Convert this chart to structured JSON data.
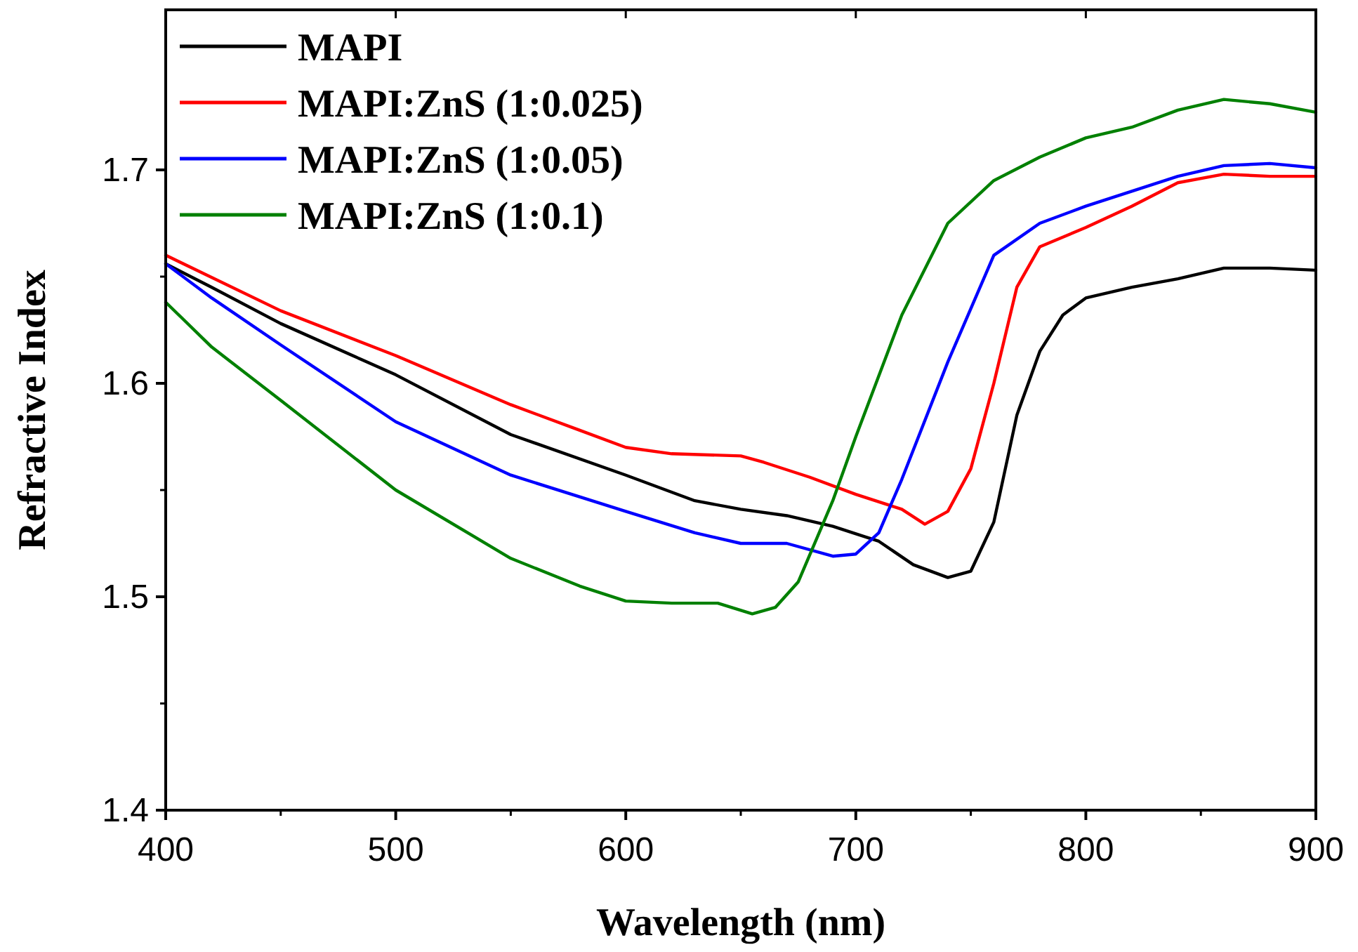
{
  "chart_data": {
    "type": "line",
    "xlabel": "Wavelength (nm)",
    "ylabel": "Refractive Index",
    "xlim": [
      400,
      900
    ],
    "ylim": [
      1.4,
      1.775
    ],
    "xticks": [
      400,
      500,
      600,
      700,
      800,
      900
    ],
    "yticks": [
      {
        "value": 1.4,
        "label": "1.4"
      },
      {
        "value": 1.5,
        "label": "1.5"
      },
      {
        "value": 1.6,
        "label": "1.6"
      },
      {
        "value": 1.7,
        "label": "1.7"
      }
    ],
    "legend": "top left",
    "grid": false,
    "marker": "none",
    "line_style": "solid",
    "series": [
      {
        "name": "MAPI",
        "color": "#000000",
        "x": [
          400,
          420,
          450,
          500,
          550,
          600,
          630,
          650,
          670,
          690,
          710,
          725,
          740,
          750,
          760,
          770,
          780,
          790,
          800,
          820,
          840,
          860,
          880,
          900
        ],
        "values": [
          1.656,
          1.645,
          1.628,
          1.604,
          1.576,
          1.557,
          1.545,
          1.541,
          1.538,
          1.533,
          1.526,
          1.515,
          1.509,
          1.512,
          1.535,
          1.585,
          1.615,
          1.632,
          1.64,
          1.645,
          1.649,
          1.654,
          1.654,
          1.653
        ]
      },
      {
        "name": "MAPI:ZnS (1:0.025)",
        "color": "#ff0000",
        "x": [
          400,
          450,
          500,
          550,
          580,
          600,
          620,
          650,
          660,
          680,
          700,
          720,
          730,
          740,
          750,
          760,
          770,
          780,
          800,
          820,
          840,
          860,
          880,
          900
        ],
        "values": [
          1.66,
          1.634,
          1.613,
          1.59,
          1.578,
          1.57,
          1.567,
          1.566,
          1.563,
          1.556,
          1.548,
          1.541,
          1.534,
          1.54,
          1.56,
          1.6,
          1.645,
          1.664,
          1.673,
          1.683,
          1.694,
          1.698,
          1.697,
          1.697
        ]
      },
      {
        "name": "MAPI:ZnS (1:0.05)",
        "color": "#0000ff",
        "x": [
          400,
          420,
          450,
          500,
          550,
          600,
          630,
          650,
          670,
          690,
          700,
          710,
          720,
          740,
          760,
          780,
          800,
          820,
          840,
          860,
          880,
          900
        ],
        "values": [
          1.656,
          1.64,
          1.618,
          1.582,
          1.557,
          1.54,
          1.53,
          1.525,
          1.525,
          1.519,
          1.52,
          1.53,
          1.555,
          1.61,
          1.66,
          1.675,
          1.683,
          1.69,
          1.697,
          1.702,
          1.703,
          1.701
        ]
      },
      {
        "name": "MAPI:ZnS (1:0.1)",
        "color": "#008000",
        "x": [
          400,
          420,
          450,
          500,
          550,
          580,
          600,
          620,
          640,
          655,
          665,
          675,
          690,
          700,
          720,
          740,
          760,
          780,
          800,
          820,
          840,
          860,
          880,
          900
        ],
        "values": [
          1.638,
          1.617,
          1.592,
          1.55,
          1.518,
          1.505,
          1.498,
          1.497,
          1.497,
          1.492,
          1.495,
          1.507,
          1.545,
          1.575,
          1.632,
          1.675,
          1.695,
          1.706,
          1.715,
          1.72,
          1.728,
          1.733,
          1.731,
          1.727
        ]
      }
    ]
  }
}
